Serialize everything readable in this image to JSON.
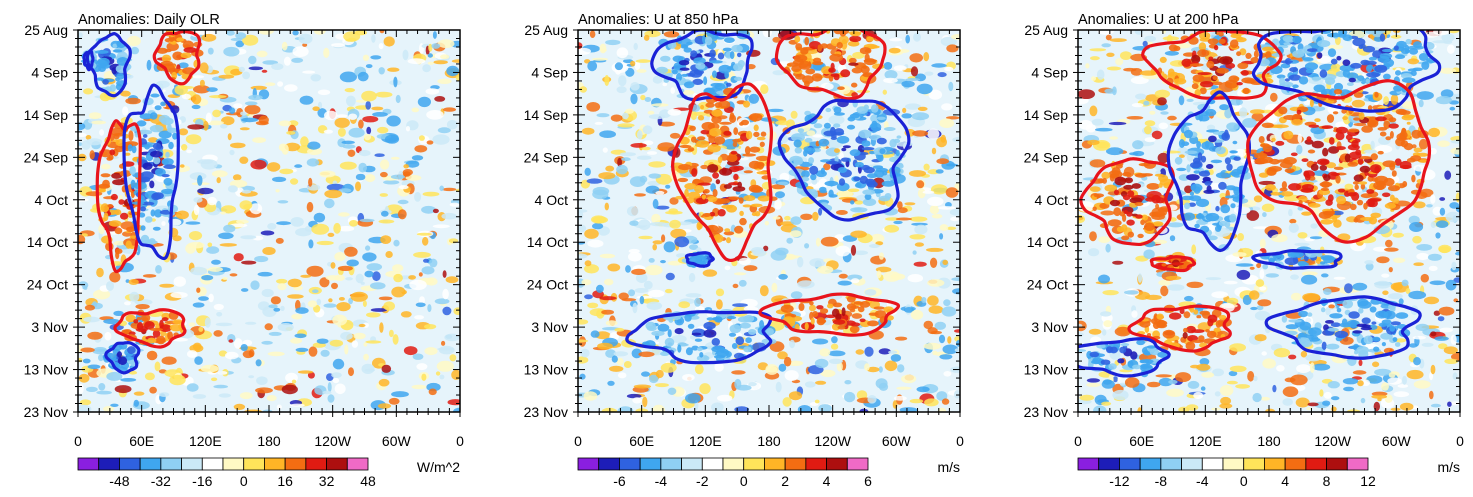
{
  "chart_data": [
    {
      "type": "heatmap",
      "title": "Anomalies: Daily OLR",
      "x_tick_labels": [
        "0",
        "60E",
        "120E",
        "180",
        "120W",
        "60W",
        "0"
      ],
      "y_tick_labels": [
        "25 Aug",
        "4 Sep",
        "14 Sep",
        "24 Sep",
        "4 Oct",
        "14 Oct",
        "24 Oct",
        "3 Nov",
        "13 Nov",
        "23 Nov"
      ],
      "xlim": [
        0,
        360
      ],
      "ylim_days": [
        0,
        90
      ],
      "colorbar_labels": [
        "-48",
        "-32",
        "-16",
        "0",
        "16",
        "32",
        "48"
      ],
      "units": "W/m^2",
      "contours": [
        {
          "sign": "pos",
          "lon": 95,
          "day": 6,
          "rlon": 20,
          "rday": 6
        },
        {
          "sign": "neg",
          "lon": 30,
          "day": 8,
          "rlon": 18,
          "rday": 7
        },
        {
          "sign": "neg",
          "lon": 10,
          "day": 7,
          "rlon": 4,
          "rday": 2
        },
        {
          "sign": "pos",
          "lon": 40,
          "day": 38,
          "rlon": 20,
          "rday": 17
        },
        {
          "sign": "neg",
          "lon": 70,
          "day": 33,
          "rlon": 25,
          "rday": 19
        },
        {
          "sign": "pos",
          "lon": 70,
          "day": 70,
          "rlon": 32,
          "rday": 4
        },
        {
          "sign": "neg",
          "lon": 43,
          "day": 77,
          "rlon": 14,
          "rday": 3.5
        }
      ]
    },
    {
      "type": "heatmap",
      "title": "Anomalies: U at 850 hPa",
      "x_tick_labels": [
        "0",
        "60E",
        "120E",
        "180",
        "120W",
        "60W",
        "0"
      ],
      "y_tick_labels": [
        "25 Aug",
        "4 Sep",
        "14 Sep",
        "24 Sep",
        "4 Oct",
        "14 Oct",
        "24 Oct",
        "3 Nov",
        "13 Nov",
        "23 Nov"
      ],
      "xlim": [
        0,
        360
      ],
      "ylim_days": [
        0,
        90
      ],
      "colorbar_labels": [
        "-6",
        "-4",
        "-2",
        "0",
        "2",
        "4",
        "6"
      ],
      "units": "m/s",
      "contours": [
        {
          "sign": "neg",
          "lon": 120,
          "day": 8,
          "rlon": 45,
          "rday": 8
        },
        {
          "sign": "pos",
          "lon": 240,
          "day": 7,
          "rlon": 50,
          "rday": 8
        },
        {
          "sign": "pos",
          "lon": 140,
          "day": 32,
          "rlon": 45,
          "rday": 19
        },
        {
          "sign": "neg",
          "lon": 255,
          "day": 30,
          "rlon": 55,
          "rday": 14
        },
        {
          "sign": "neg",
          "lon": 115,
          "day": 54,
          "rlon": 12,
          "rday": 1.5
        },
        {
          "sign": "neg",
          "lon": 120,
          "day": 72,
          "rlon": 65,
          "rday": 6
        },
        {
          "sign": "pos",
          "lon": 240,
          "day": 67,
          "rlon": 60,
          "rday": 4.5
        }
      ]
    },
    {
      "type": "heatmap",
      "title": "Anomalies: U at 200 hPa",
      "x_tick_labels": [
        "0",
        "60E",
        "120E",
        "180",
        "120W",
        "60W",
        "0"
      ],
      "y_tick_labels": [
        "25 Aug",
        "4 Sep",
        "14 Sep",
        "24 Sep",
        "4 Oct",
        "14 Oct",
        "24 Oct",
        "3 Nov",
        "13 Nov",
        "23 Nov"
      ],
      "xlim": [
        0,
        360
      ],
      "ylim_days": [
        0,
        90
      ],
      "colorbar_labels": [
        "-12",
        "-8",
        "-4",
        "0",
        "4",
        "8",
        "12"
      ],
      "units": "m/s",
      "contours": [
        {
          "sign": "pos",
          "lon": 130,
          "day": 8,
          "rlon": 60,
          "rday": 8
        },
        {
          "sign": "neg",
          "lon": 255,
          "day": 8,
          "rlon": 85,
          "rday": 10
        },
        {
          "sign": "pos",
          "lon": 50,
          "day": 40,
          "rlon": 40,
          "rday": 10
        },
        {
          "sign": "neg",
          "lon": 125,
          "day": 33,
          "rlon": 35,
          "rday": 17
        },
        {
          "sign": "pos",
          "lon": 250,
          "day": 30,
          "rlon": 85,
          "rday": 17
        },
        {
          "sign": "neg",
          "lon": 210,
          "day": 54,
          "rlon": 40,
          "rday": 2
        },
        {
          "sign": "pos",
          "lon": 90,
          "day": 55,
          "rlon": 20,
          "rday": 1.5
        },
        {
          "sign": "pos",
          "lon": 100,
          "day": 70,
          "rlon": 45,
          "rday": 5
        },
        {
          "sign": "neg",
          "lon": 255,
          "day": 70,
          "rlon": 65,
          "rday": 7
        },
        {
          "sign": "neg",
          "lon": 40,
          "day": 77,
          "rlon": 45,
          "rday": 4
        }
      ]
    }
  ]
}
